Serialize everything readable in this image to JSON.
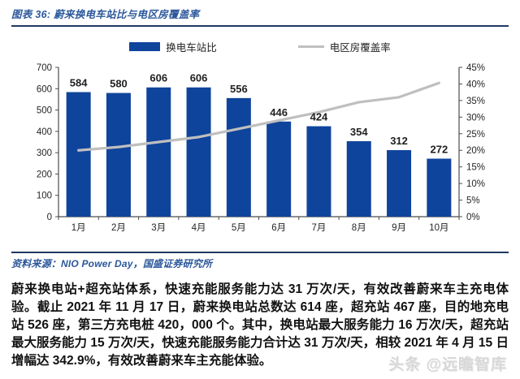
{
  "figure": {
    "title": "图表 36: 蔚来换电车站比与电区房覆盖率"
  },
  "colors": {
    "bar": "#0F449C",
    "line": "#BFBFBF",
    "accent_blue": "#2B579A",
    "rule_navy": "#1F3864",
    "axis_text": "#262626",
    "axis_line": "#4d4d4d",
    "bar_label": "#1f1f1f",
    "watermark": "#d8d8d8"
  },
  "chart_data": {
    "type": "bar",
    "subtype": "bar+line combo, dual axis",
    "categories": [
      "1月",
      "2月",
      "3月",
      "4月",
      "5月",
      "6月",
      "7月",
      "8月",
      "9月",
      "10月"
    ],
    "series": [
      {
        "name": "换电车站比",
        "type": "bar",
        "axis": "left",
        "values": [
          584,
          580,
          606,
          606,
          556,
          446,
          424,
          354,
          312,
          272
        ],
        "color": "#0F449C"
      },
      {
        "name": "电区房覆盖率",
        "type": "line",
        "axis": "right",
        "values": [
          20,
          21,
          22.5,
          24,
          26.5,
          29,
          31.5,
          34.5,
          36,
          40.3
        ],
        "color": "#BFBFBF"
      }
    ],
    "left_axis": {
      "min": 0,
      "max": 700,
      "step": 100,
      "suffix": ""
    },
    "right_axis": {
      "min": 0,
      "max": 45,
      "step": 5,
      "suffix": "%"
    },
    "legend_position": "top",
    "grid": false,
    "bar_labels": true
  },
  "source": {
    "text": "资料来源：NIO Power Day，国盛证券研究所"
  },
  "body": {
    "text": "蔚来换电站+超充站体系，快速充能服务能力达 31 万次/天，有效改善蔚来车主充电体验。截止 2021 年 11 月 17 日，蔚来换电站总数达 614 座，超充站 467 座，目的地充电站 526 座，第三方充电桩 420，000 个。其中，换电站最大服务能力 16 万次/天，超充站最大服务能力 15 万次/天，快速充能服务能力合计达 31 万次/天，相较 2021 年 4 月 15 日增幅达 342.9%，有效改善蔚来车主充能体验。"
  },
  "watermark": {
    "text": "头条 @远瞻智库"
  }
}
